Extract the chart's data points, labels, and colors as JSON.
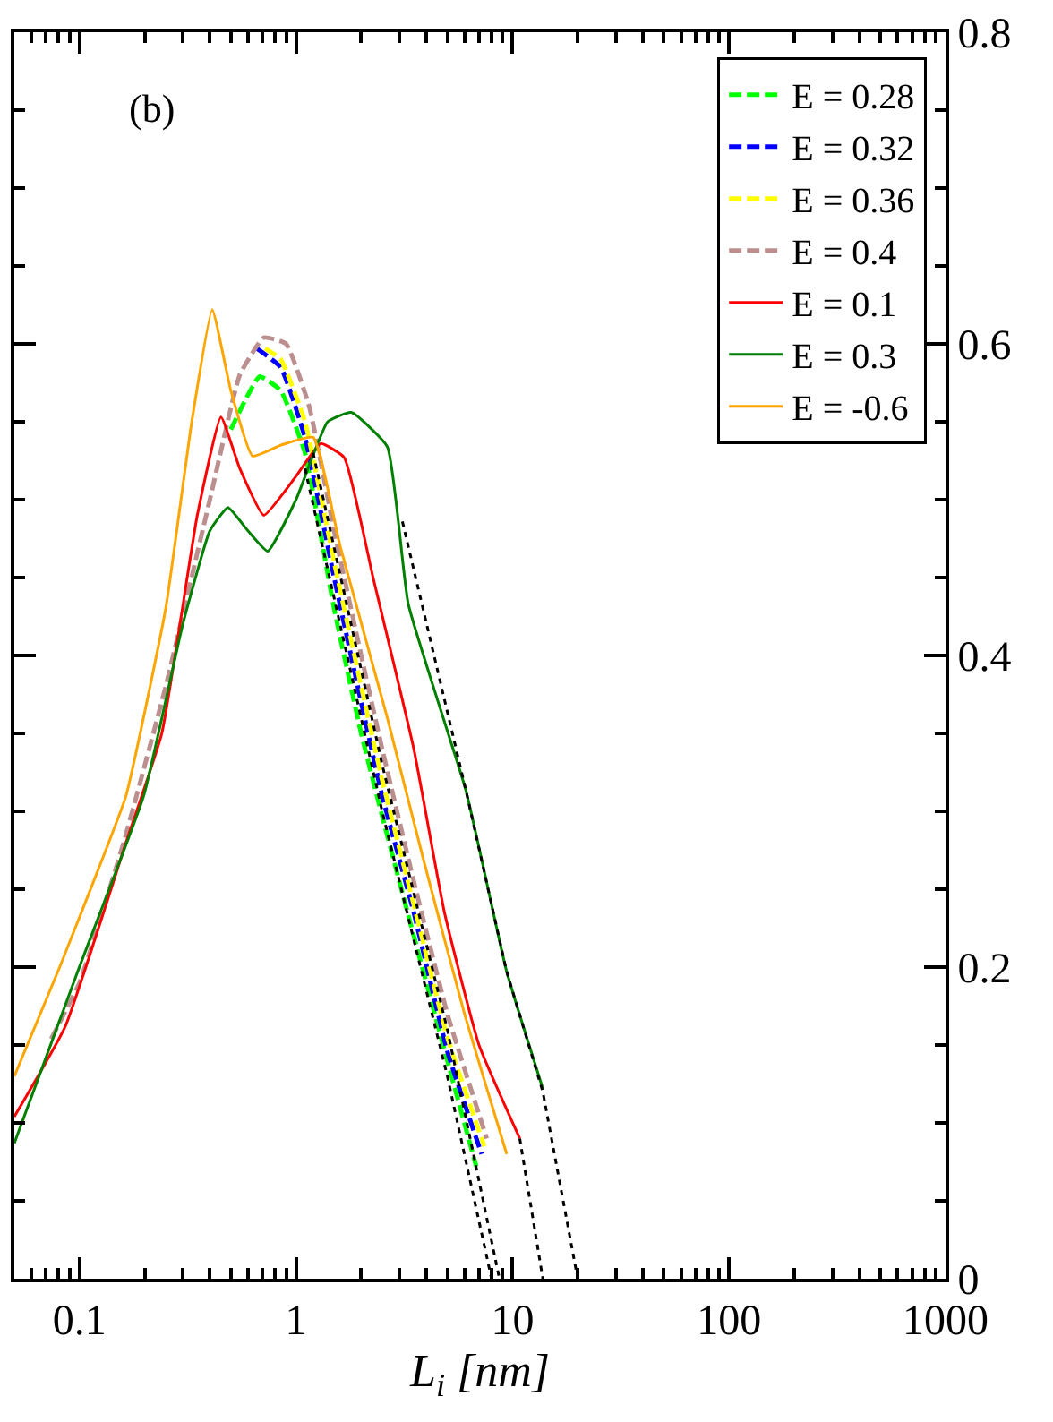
{
  "chart_data": {
    "type": "line",
    "xlabel": "L$_{i}$ [nm]",
    "annotations": [
      "(b)"
    ],
    "log": "x",
    "xlim": [
      0.05,
      1000
    ],
    "xticks": [
      0.1,
      1,
      10,
      100,
      1000
    ],
    "ylim": [
      0,
      0.8
    ],
    "yticks": [
      0,
      0.2,
      0.4,
      0.6,
      0.8
    ],
    "legend": "top right",
    "series": [
      {
        "name": "E = 0.28",
        "color": "#00ff00",
        "line_style": "dashed",
        "x": [
          0.5,
          0.68,
          0.85,
          1.1,
          1.5,
          2.0,
          2.5,
          3.5,
          5.0,
          6.8
        ],
        "values": [
          0.545,
          0.579,
          0.57,
          0.53,
          0.43,
          0.35,
          0.297,
          0.22,
          0.14,
          0.072
        ]
      },
      {
        "name": "E = 0.32",
        "color": "#0000ff",
        "line_style": "dashed",
        "x": [
          0.66,
          0.85,
          1.1,
          1.5,
          2.0,
          2.5,
          3.5,
          5.0,
          7.2
        ],
        "values": [
          0.597,
          0.585,
          0.54,
          0.45,
          0.37,
          0.31,
          0.235,
          0.146,
          0.08
        ]
      },
      {
        "name": "E = 0.36",
        "color": "#ffff00",
        "line_style": "dashed",
        "x": [
          0.72,
          0.85,
          1.1,
          1.5,
          2.0,
          2.5,
          3.5,
          5.0,
          7.4
        ],
        "values": [
          0.597,
          0.59,
          0.55,
          0.46,
          0.38,
          0.32,
          0.24,
          0.155,
          0.085
        ]
      },
      {
        "name": "E = 0.4",
        "color": "#bc8f8f",
        "line_style": "dashed",
        "x": [
          0.074,
          0.1,
          0.16,
          0.25,
          0.4,
          0.55,
          0.71,
          0.9,
          1.15,
          1.5,
          2.0,
          2.5,
          3.5,
          5.0,
          7.6
        ],
        "values": [
          0.154,
          0.19,
          0.28,
          0.38,
          0.5,
          0.58,
          0.604,
          0.6,
          0.56,
          0.48,
          0.4,
          0.34,
          0.255,
          0.17,
          0.09
        ]
      },
      {
        "name": "E = 0.1",
        "color": "#ff0000",
        "line_style": "solid",
        "x": [
          0.05,
          0.086,
          0.164,
          0.24,
          0.35,
          0.45,
          0.55,
          0.71,
          1.0,
          1.3,
          1.67,
          2.27,
          3.5,
          4.85,
          7.0,
          10.8
        ],
        "values": [
          0.104,
          0.162,
          0.28,
          0.35,
          0.49,
          0.553,
          0.52,
          0.49,
          0.515,
          0.536,
          0.527,
          0.45,
          0.34,
          0.235,
          0.15,
          0.09
        ]
      },
      {
        "name": "E = 0.3",
        "color": "#008000",
        "line_style": "solid",
        "x": [
          0.05,
          0.098,
          0.198,
          0.3,
          0.4,
          0.485,
          0.6,
          0.74,
          1.0,
          1.4,
          1.8,
          2.64,
          3.3,
          6.1,
          9.4,
          13.8
        ],
        "values": [
          0.087,
          0.197,
          0.31,
          0.42,
          0.48,
          0.495,
          0.48,
          0.467,
          0.5,
          0.55,
          0.556,
          0.534,
          0.433,
          0.313,
          0.197,
          0.122
        ]
      },
      {
        "name": "E = -0.6",
        "color": "#ffa500",
        "line_style": "solid",
        "x": [
          0.05,
          0.081,
          0.12,
          0.164,
          0.25,
          0.33,
          0.41,
          0.5,
          0.63,
          0.85,
          1.2,
          1.6,
          2.64,
          3.86,
          6.0,
          9.4
        ],
        "values": [
          0.13,
          0.2,
          0.26,
          0.31,
          0.43,
          0.55,
          0.622,
          0.57,
          0.528,
          0.535,
          0.54,
          0.47,
          0.36,
          0.27,
          0.17,
          0.08
        ]
      },
      {
        "color": "#000000",
        "line_style": "dotted",
        "x": [
          1.1,
          2.5,
          5.0,
          8.0
        ],
        "values": [
          0.52,
          0.3,
          0.13,
          0.0
        ]
      },
      {
        "color": "#000000",
        "line_style": "dotted",
        "x": [
          1.2,
          2.5,
          5.0,
          8.7
        ],
        "values": [
          0.53,
          0.33,
          0.16,
          0.0
        ]
      },
      {
        "color": "#000000",
        "line_style": "dotted",
        "x": [
          10.8,
          13.8
        ],
        "values": [
          0.09,
          0.0
        ]
      },
      {
        "color": "#000000",
        "line_style": "dotted",
        "x": [
          3.1,
          6.1,
          9.4,
          13.8,
          20
        ],
        "values": [
          0.486,
          0.313,
          0.197,
          0.12,
          0.0
        ]
      }
    ]
  }
}
